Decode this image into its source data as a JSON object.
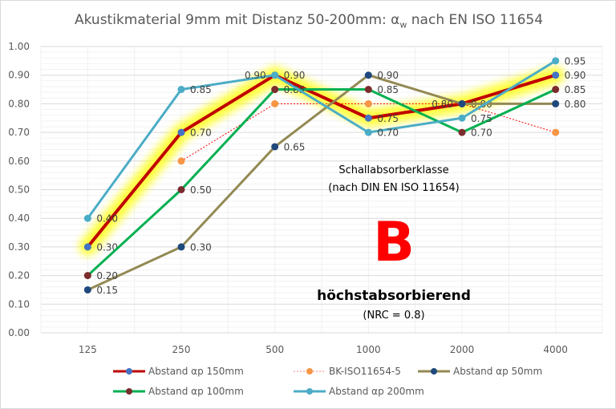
{
  "chart_data": {
    "type": "line",
    "title": {
      "main": "Akustikmaterial 9mm mit Distanz 50-200mm: α",
      "sub": "w",
      "rest": " nach EN ISO 11654"
    },
    "categories": [
      "125",
      "250",
      "500",
      "1000",
      "2000",
      "4000"
    ],
    "ylim": [
      0,
      1
    ],
    "yticks": [
      "0.00",
      "0.10",
      "0.20",
      "0.30",
      "0.40",
      "0.50",
      "0.60",
      "0.70",
      "0.80",
      "0.90",
      "1.00"
    ],
    "grid": true,
    "legend_position": "bottom",
    "series": [
      {
        "name": "Abstand αp 150mm",
        "values": [
          0.3,
          0.7,
          0.9,
          0.75,
          0.8,
          0.9
        ],
        "line_color": "#c00000",
        "marker_color": "#4472c4",
        "glow": true,
        "labels": true,
        "dashed": false,
        "width": 4
      },
      {
        "name": "BK-ISO11654-5",
        "values": [
          null,
          0.6,
          0.8,
          0.8,
          0.8,
          0.7
        ],
        "line_color": "#ff0000",
        "marker_color": "#f79646",
        "glow": false,
        "labels": false,
        "dashed": true,
        "width": 1
      },
      {
        "name": "Abstand  αp 50mm",
        "values": [
          0.15,
          0.3,
          0.65,
          0.9,
          0.8,
          0.8
        ],
        "line_color": "#938953",
        "marker_color": "#1f497d",
        "glow": false,
        "labels": true,
        "dashed": false,
        "width": 3
      },
      {
        "name": "Abstand  αp 100mm",
        "values": [
          0.2,
          0.5,
          0.85,
          0.85,
          0.7,
          0.85
        ],
        "line_color": "#00b050",
        "marker_color": "#7b2c2c",
        "glow": false,
        "labels": true,
        "dashed": false,
        "width": 3
      },
      {
        "name": "Abstand αp 200mm",
        "values": [
          0.4,
          0.85,
          0.9,
          0.7,
          0.75,
          0.95
        ],
        "line_color": "#4bacc6",
        "marker_color": "#4bacc6",
        "glow": false,
        "labels": true,
        "dashed": false,
        "width": 3
      }
    ],
    "annotations": {
      "class_label": "Schallabsorberklasse",
      "class_norm": "(nach DIN EN ISO 11654)",
      "class_letter": "B",
      "class_desc": "höchstabsorbierend",
      "nrc": "(NRC = 0.8)",
      "letter_color": "#ff0000"
    }
  }
}
